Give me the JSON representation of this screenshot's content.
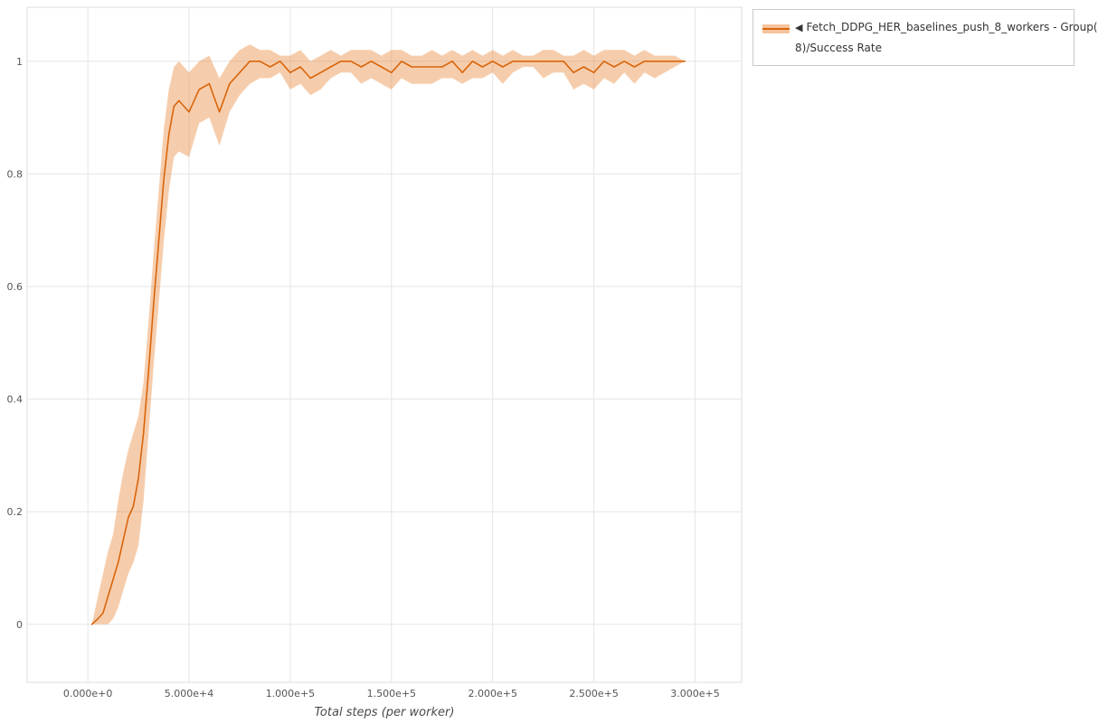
{
  "legend": {
    "marker": "◀",
    "label": "Fetch_DDPG_HER_baselines_push_8_workers - Group(8)/Success Rate",
    "label_line1": "Fetch_DDPG_HER_baselines_push_8_workers - Group(",
    "label_line2": "8)/Success Rate"
  },
  "colors": {
    "line": "#d9650b",
    "band": "rgba(232,124,38,0.38)",
    "grid": "#e5e5e5",
    "frame": "#dcdcdc",
    "tick_text": "#555555"
  },
  "chart_data": {
    "type": "line",
    "title": "",
    "xlabel": "Total steps (per worker)",
    "ylabel": "",
    "grid": true,
    "legend_position": "top-right",
    "x_range": [
      -30000,
      323000
    ],
    "y_range": [
      -0.103,
      1.096
    ],
    "x_tick_values": [
      0,
      50000,
      100000,
      150000,
      200000,
      250000,
      300000
    ],
    "x_tick_labels": [
      "0.000e+0",
      "5.000e+4",
      "1.000e+5",
      "1.500e+5",
      "2.000e+5",
      "2.500e+5",
      "3.000e+5"
    ],
    "y_tick_values": [
      0,
      0.2,
      0.4,
      0.6,
      0.8,
      1
    ],
    "y_tick_labels": [
      "0",
      "0.2",
      "0.4",
      "0.6",
      "0.8",
      "1"
    ],
    "series": [
      {
        "name": "Fetch_DDPG_HER_baselines_push_8_workers - Group(8)/Success Rate",
        "line_color": "#d9650b",
        "band_color": "rgba(232,124,38,0.38)",
        "x": [
          2000,
          5000,
          7500,
          10000,
          12500,
          15000,
          17500,
          20000,
          22500,
          25000,
          27500,
          30000,
          32500,
          35000,
          37500,
          40000,
          42500,
          45000,
          50000,
          55000,
          60000,
          65000,
          70000,
          75000,
          80000,
          85000,
          90000,
          95000,
          100000,
          105000,
          110000,
          115000,
          120000,
          125000,
          130000,
          135000,
          140000,
          145000,
          150000,
          155000,
          160000,
          165000,
          170000,
          175000,
          180000,
          185000,
          190000,
          195000,
          200000,
          205000,
          210000,
          215000,
          220000,
          225000,
          230000,
          235000,
          240000,
          245000,
          250000,
          255000,
          260000,
          265000,
          270000,
          275000,
          280000,
          285000,
          290000,
          295000
        ],
        "mean": [
          0.0,
          0.01,
          0.02,
          0.05,
          0.08,
          0.11,
          0.15,
          0.19,
          0.21,
          0.26,
          0.34,
          0.45,
          0.57,
          0.68,
          0.79,
          0.87,
          0.92,
          0.93,
          0.91,
          0.95,
          0.96,
          0.91,
          0.96,
          0.98,
          1.0,
          1.0,
          0.99,
          1.0,
          0.98,
          0.99,
          0.97,
          0.98,
          0.99,
          1.0,
          1.0,
          0.99,
          1.0,
          0.99,
          0.98,
          1.0,
          0.99,
          0.99,
          0.99,
          0.99,
          1.0,
          0.98,
          1.0,
          0.99,
          1.0,
          0.99,
          1.0,
          1.0,
          1.0,
          1.0,
          1.0,
          1.0,
          0.98,
          0.99,
          0.98,
          1.0,
          0.99,
          1.0,
          0.99,
          1.0,
          1.0,
          1.0,
          1.0,
          1.0
        ],
        "lower": [
          0.0,
          0.0,
          0.0,
          0.0,
          0.01,
          0.03,
          0.06,
          0.09,
          0.11,
          0.14,
          0.22,
          0.34,
          0.46,
          0.57,
          0.68,
          0.77,
          0.83,
          0.84,
          0.83,
          0.89,
          0.9,
          0.85,
          0.91,
          0.94,
          0.96,
          0.97,
          0.97,
          0.98,
          0.95,
          0.96,
          0.94,
          0.95,
          0.97,
          0.98,
          0.98,
          0.96,
          0.97,
          0.96,
          0.95,
          0.97,
          0.96,
          0.96,
          0.96,
          0.97,
          0.97,
          0.96,
          0.97,
          0.97,
          0.98,
          0.96,
          0.98,
          0.99,
          0.99,
          0.97,
          0.98,
          0.98,
          0.95,
          0.96,
          0.95,
          0.97,
          0.96,
          0.98,
          0.96,
          0.98,
          0.97,
          0.98,
          0.99,
          1.0
        ],
        "upper": [
          0.0,
          0.05,
          0.09,
          0.13,
          0.16,
          0.22,
          0.27,
          0.31,
          0.34,
          0.37,
          0.43,
          0.54,
          0.66,
          0.77,
          0.88,
          0.95,
          0.99,
          1.0,
          0.98,
          1.0,
          1.01,
          0.97,
          1.0,
          1.02,
          1.03,
          1.02,
          1.02,
          1.01,
          1.01,
          1.02,
          1.0,
          1.01,
          1.02,
          1.01,
          1.02,
          1.02,
          1.02,
          1.01,
          1.02,
          1.02,
          1.01,
          1.01,
          1.02,
          1.01,
          1.02,
          1.01,
          1.02,
          1.01,
          1.02,
          1.01,
          1.02,
          1.01,
          1.01,
          1.02,
          1.02,
          1.01,
          1.01,
          1.02,
          1.01,
          1.02,
          1.02,
          1.02,
          1.01,
          1.02,
          1.01,
          1.01,
          1.01,
          1.0
        ]
      }
    ]
  }
}
